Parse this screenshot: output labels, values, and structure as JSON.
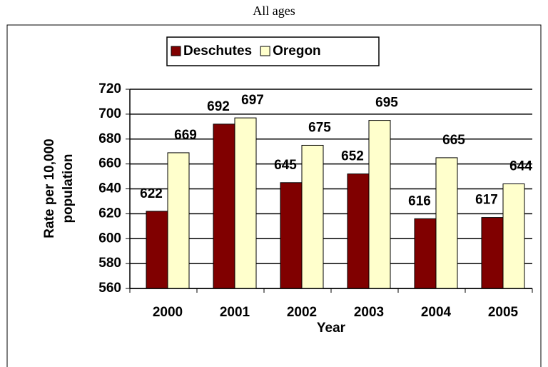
{
  "chart_data": {
    "type": "bar",
    "title": "All ages",
    "categories": [
      "2000",
      "2001",
      "2002",
      "2003",
      "2004",
      "2005"
    ],
    "series": [
      {
        "name": "Deschutes",
        "color": "#800000",
        "values": [
          622,
          692,
          645,
          652,
          616,
          617
        ]
      },
      {
        "name": "Oregon",
        "color": "#ffffcc",
        "values": [
          669,
          697,
          675,
          695,
          665,
          644
        ]
      }
    ],
    "ylim": [
      560,
      720
    ],
    "yticks": [
      560,
      580,
      600,
      620,
      640,
      660,
      680,
      700,
      720
    ],
    "x_label": "Year",
    "y_label": [
      "Rate per 10,000",
      "population"
    ],
    "grid": true,
    "legend": "top"
  }
}
